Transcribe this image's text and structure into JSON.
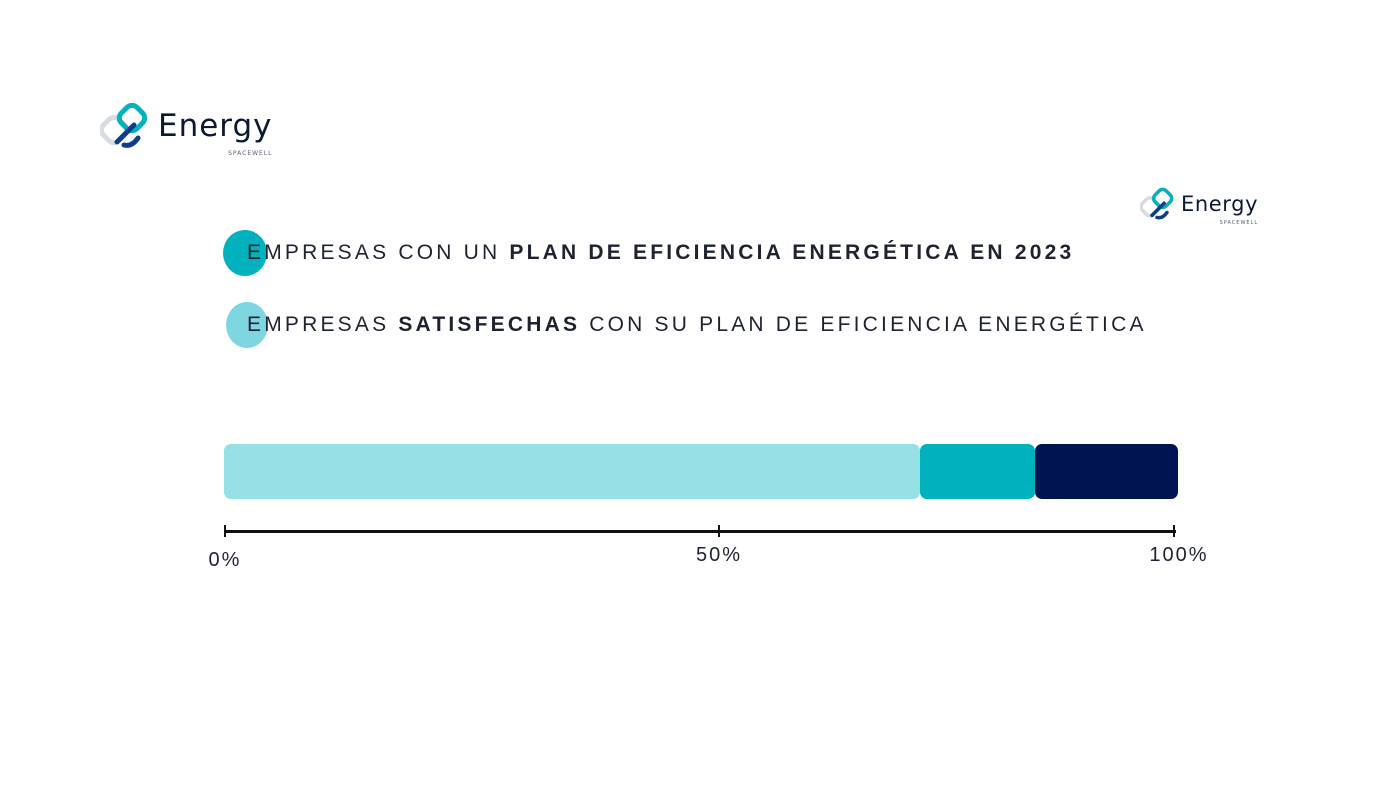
{
  "branding": {
    "logo_word": "Energy",
    "logo_sub": "SPACEWELL"
  },
  "legend": [
    {
      "prefix": "EMPRESAS CON UN ",
      "bold": "PLAN DE EFICIENCIA ENERGÉTICA EN 2023",
      "suffix": "",
      "color": "#00b2bd"
    },
    {
      "prefix": "EMPRESAS ",
      "bold": "SATISFECHAS",
      "suffix": " CON SU PLAN DE EFICIENCIA ENERGÉTICA",
      "color": "#7ed6e0"
    }
  ],
  "chart_data": {
    "type": "bar",
    "orientation": "horizontal-stacked",
    "segments": [
      {
        "value": 73,
        "color": "#97e0e6"
      },
      {
        "value": 12,
        "color": "#00b2bd"
      },
      {
        "value": 15,
        "color": "#001454"
      }
    ],
    "xlim": [
      0,
      100
    ],
    "ticks": [
      {
        "value": 0,
        "label": "0%"
      },
      {
        "value": 50,
        "label": "50%"
      },
      {
        "value": 100,
        "label": "100%"
      }
    ],
    "grid": false
  }
}
